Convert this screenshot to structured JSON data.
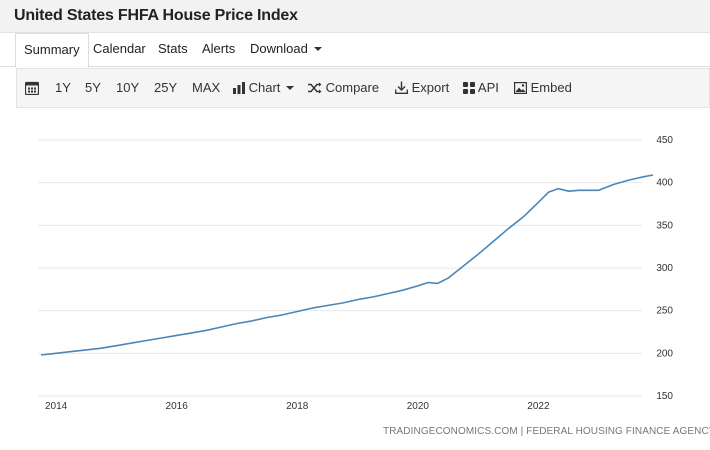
{
  "header": {
    "title": "United States FHFA House Price Index"
  },
  "tabs": [
    {
      "label": "Summary",
      "active": true
    },
    {
      "label": "Calendar"
    },
    {
      "label": "Stats"
    },
    {
      "label": "Alerts"
    },
    {
      "label": "Download",
      "has_dropdown": true
    }
  ],
  "toolbar": {
    "calendar_icon": "calendar-icon",
    "ranges": [
      "1Y",
      "5Y",
      "10Y",
      "25Y",
      "MAX"
    ],
    "chart_label": "Chart",
    "compare_label": "Compare",
    "export_label": "Export",
    "api_label": "API",
    "embed_label": "Embed"
  },
  "colors": {
    "line": "#4a86b8",
    "grid": "#e8e8e8",
    "toolbar_bg": "#f5f5f5",
    "header_bg": "#f2f2f2"
  },
  "credit": "TRADINGECONOMICS.COM | FEDERAL HOUSING FINANCE AGENCY",
  "chart_data": {
    "type": "line",
    "title": "",
    "xlabel": "",
    "ylabel": "",
    "x_ticks": [
      "2014",
      "2016",
      "2018",
      "2020",
      "2022"
    ],
    "y_ticks": [
      150,
      200,
      250,
      300,
      350,
      400,
      450
    ],
    "ylim": [
      150,
      450
    ],
    "xlim": [
      2013.7,
      2023.95
    ],
    "grid": "horizontal",
    "y_axis_side": "right",
    "series": [
      {
        "name": "",
        "x": [
          2013.75,
          2014.0,
          2014.25,
          2014.5,
          2014.75,
          2015.0,
          2015.25,
          2015.5,
          2015.75,
          2016.0,
          2016.25,
          2016.5,
          2016.75,
          2017.0,
          2017.25,
          2017.5,
          2017.75,
          2018.0,
          2018.25,
          2018.5,
          2018.75,
          2019.0,
          2019.25,
          2019.5,
          2019.75,
          2020.0,
          2020.17,
          2020.33,
          2020.5,
          2020.75,
          2021.0,
          2021.25,
          2021.5,
          2021.75,
          2022.0,
          2022.17,
          2022.33,
          2022.5,
          2022.67,
          2022.83,
          2023.0,
          2023.25,
          2023.5,
          2023.75,
          2023.9
        ],
        "values": [
          198,
          200,
          202,
          204,
          206,
          209,
          212,
          215,
          218,
          221,
          224,
          227,
          231,
          235,
          238,
          242,
          245,
          249,
          253,
          256,
          259,
          263,
          266,
          270,
          274,
          279,
          283,
          282,
          288,
          302,
          316,
          331,
          346,
          360,
          377,
          389,
          393,
          390,
          391,
          391,
          391,
          398,
          403,
          407,
          409
        ]
      }
    ]
  }
}
